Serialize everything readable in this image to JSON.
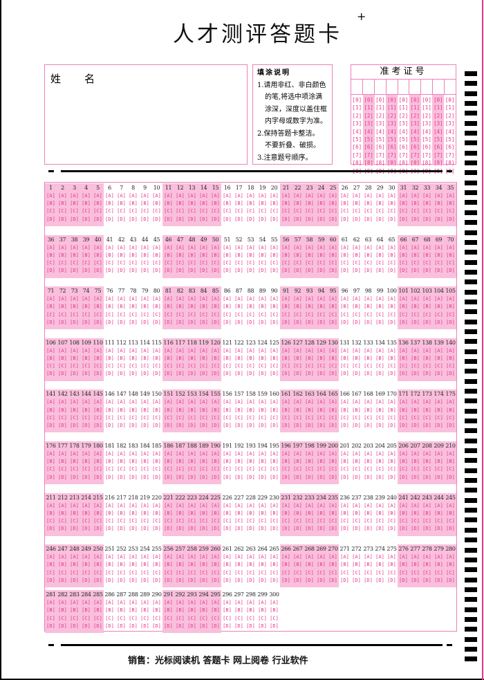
{
  "title": "人才测评答题卡",
  "corner_mark": "+",
  "name_box": {
    "label": "姓名"
  },
  "instructions": {
    "title": "填涂说明",
    "lines": [
      {
        "text": "1.请用非红、非白颜色",
        "indent": false
      },
      {
        "text": "的笔,将选中项涂满",
        "indent": true
      },
      {
        "text": "涂深，深度以盖住框",
        "indent": true
      },
      {
        "text": "内字母或数字为准。",
        "indent": true
      },
      {
        "text": "2.保持答题卡整洁。",
        "indent": false
      },
      {
        "text": "不要折叠、破损。",
        "indent": true
      },
      {
        "text": "3.注意题号顺序。",
        "indent": false
      }
    ]
  },
  "admission_id": {
    "title": "准考证号",
    "columns": 9,
    "digits": [
      "0",
      "1",
      "2",
      "3",
      "4",
      "5",
      "6",
      "7",
      "8",
      "9"
    ]
  },
  "answers": {
    "total_questions": 300,
    "questions_per_row": 35,
    "options": [
      "A",
      "B",
      "C",
      "D"
    ]
  },
  "footer": "销售：光标阅读机 答题卡 网上阅卷 行业软件",
  "colors": {
    "accent": "#e8338a",
    "band": "#f9bfdc",
    "border": "#ef7fb6"
  }
}
